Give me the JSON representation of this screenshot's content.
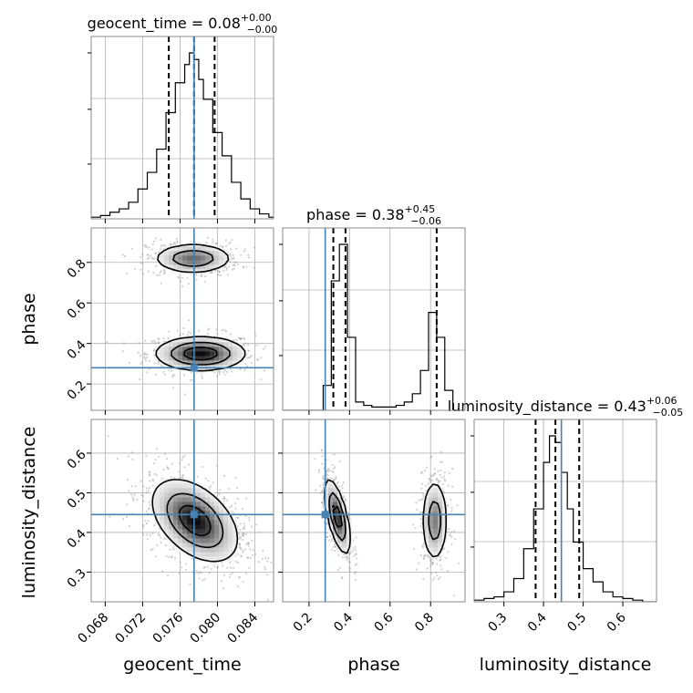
{
  "figure": {
    "titles": {
      "geocent_time": {
        "name": "geocent_time",
        "value": "0.08",
        "plus": "+0.00",
        "minus": "−0.00"
      },
      "phase": {
        "name": "phase",
        "value": "0.38",
        "plus": "+0.45",
        "minus": "−0.06"
      },
      "luminosity_distance": {
        "name": "luminosity_distance",
        "value": "0.43",
        "plus": "+0.06",
        "minus": "−0.05"
      }
    },
    "axis_labels": {
      "geocent_time": "geocent_time",
      "phase": "phase",
      "luminosity_distance": "luminosity_distance"
    }
  },
  "chart_data": {
    "type": "corner",
    "parameters": [
      "geocent_time",
      "phase",
      "luminosity_distance"
    ],
    "colors": {
      "truth": "#4682b4",
      "histogram": "#000000",
      "grid": "#b0b0b0",
      "quantile": "#000000"
    },
    "grid": true,
    "truths": {
      "geocent_time": 0.0775,
      "phase": 0.28,
      "luminosity_distance": 0.445
    },
    "quantiles": {
      "geocent_time": [
        0.0748,
        0.0775,
        0.0797
      ],
      "phase": [
        0.32,
        0.38,
        0.83
      ],
      "luminosity_distance": [
        0.38,
        0.43,
        0.49
      ]
    },
    "ranges": {
      "geocent_time": [
        0.0665,
        0.086
      ],
      "phase": [
        0.07,
        0.97
      ],
      "luminosity_distance": [
        0.225,
        0.685
      ]
    },
    "ticks": {
      "geocent_time": [
        {
          "v": 0.068,
          "label": "0.068"
        },
        {
          "v": 0.072,
          "label": "0.072"
        },
        {
          "v": 0.076,
          "label": "0.076"
        },
        {
          "v": 0.08,
          "label": "0.080"
        },
        {
          "v": 0.084,
          "label": "0.084"
        }
      ],
      "phase": [
        {
          "v": 0.2,
          "label": "0.2"
        },
        {
          "v": 0.4,
          "label": "0.4"
        },
        {
          "v": 0.6,
          "label": "0.6"
        },
        {
          "v": 0.8,
          "label": "0.8"
        }
      ],
      "luminosity_distance": [
        {
          "v": 0.3,
          "label": "0.3"
        },
        {
          "v": 0.4,
          "label": "0.4"
        },
        {
          "v": 0.5,
          "label": "0.5"
        },
        {
          "v": 0.6,
          "label": "0.6"
        }
      ]
    },
    "histograms": {
      "geocent_time": {
        "edges": [
          0.0665,
          0.0675,
          0.0685,
          0.0695,
          0.0705,
          0.0715,
          0.0725,
          0.0735,
          0.0745,
          0.0755,
          0.0765,
          0.077,
          0.0775,
          0.078,
          0.0785,
          0.0795,
          0.0805,
          0.0815,
          0.0825,
          0.0835,
          0.0845,
          0.0855,
          0.086
        ],
        "counts": [
          1,
          2,
          4,
          6,
          10,
          18,
          28,
          42,
          64,
          82,
          93,
          100,
          96,
          84,
          72,
          52,
          38,
          22,
          12,
          6,
          3,
          1
        ]
      },
      "phase": {
        "edges": [
          0.07,
          0.11,
          0.15,
          0.19,
          0.23,
          0.27,
          0.31,
          0.35,
          0.39,
          0.43,
          0.47,
          0.51,
          0.55,
          0.59,
          0.63,
          0.67,
          0.71,
          0.75,
          0.79,
          0.83,
          0.87,
          0.91,
          0.97
        ],
        "counts": [
          0,
          0,
          0,
          0,
          0,
          15,
          78,
          100,
          44,
          5,
          3,
          2,
          2,
          2,
          3,
          5,
          10,
          24,
          59,
          44,
          12,
          0
        ]
      },
      "luminosity_distance": {
        "edges": [
          0.225,
          0.25,
          0.275,
          0.3,
          0.325,
          0.35,
          0.375,
          0.4,
          0.415,
          0.43,
          0.445,
          0.46,
          0.475,
          0.5,
          0.525,
          0.55,
          0.575,
          0.6,
          0.625,
          0.65,
          0.685
        ],
        "counts": [
          1,
          2,
          3,
          6,
          14,
          32,
          56,
          84,
          100,
          96,
          78,
          56,
          36,
          20,
          12,
          6,
          3,
          2,
          1,
          0
        ]
      }
    },
    "densities": {
      "geocent_time_phase": [
        {
          "cx": 0.0782,
          "cy": 0.35,
          "sx": 0.0023,
          "sy": 0.04,
          "rho": 0.0,
          "weight": 1.0
        },
        {
          "cx": 0.0774,
          "cy": 0.82,
          "sx": 0.002,
          "sy": 0.035,
          "rho": 0.0,
          "weight": 0.7
        }
      ],
      "phase_luminosity_distance": [
        {
          "cx": 0.34,
          "cy": 0.44,
          "sx": 0.03,
          "sy": 0.045,
          "rho": -0.65,
          "weight": 1.0
        },
        {
          "cx": 0.82,
          "cy": 0.43,
          "sx": 0.03,
          "sy": 0.05,
          "rho": 0.0,
          "weight": 0.65
        }
      ],
      "geocent_time_luminosity_distance": [
        {
          "cx": 0.0776,
          "cy": 0.43,
          "sx": 0.0022,
          "sy": 0.05,
          "rho": -0.45,
          "weight": 1.0
        }
      ]
    },
    "contour_levels": [
      0.12,
      0.4,
      0.75
    ]
  }
}
